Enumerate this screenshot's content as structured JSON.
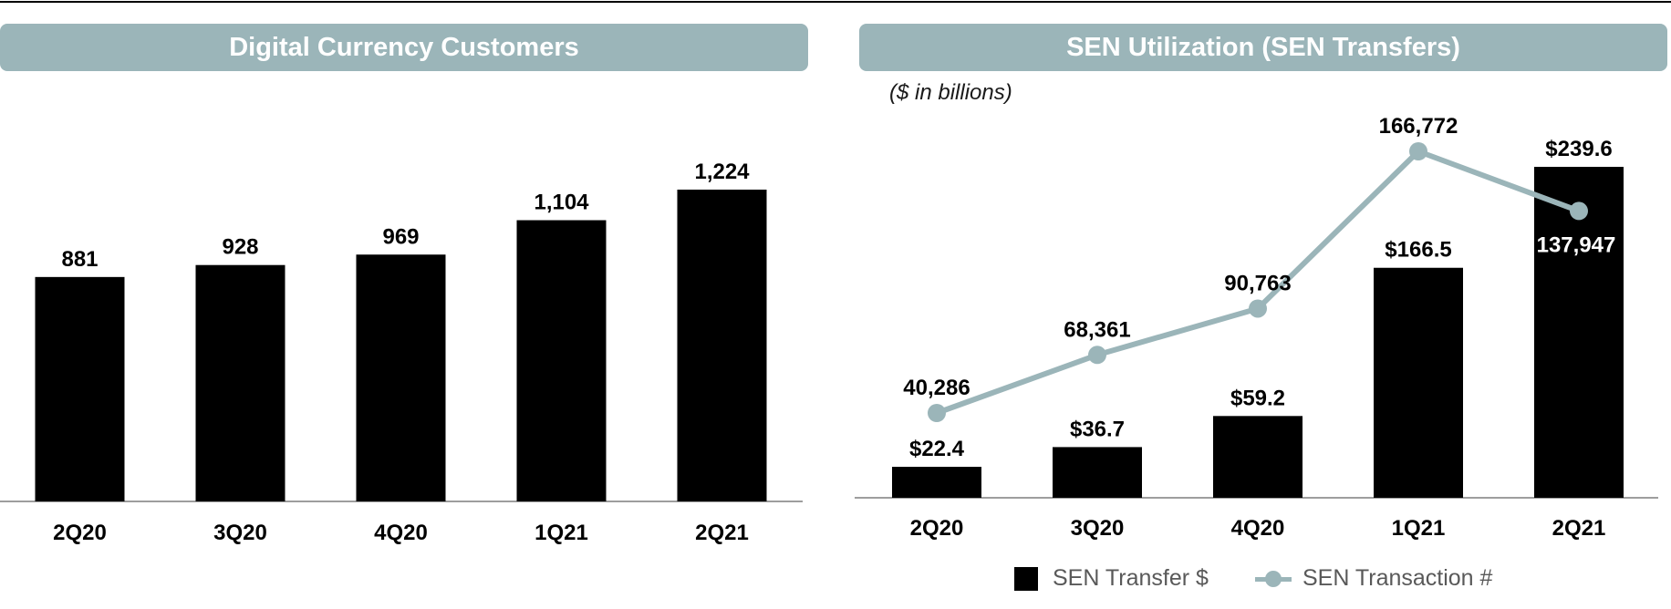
{
  "colors": {
    "bar": "#000000",
    "accent": "#9bb5b9",
    "axis": "#7f7f7f"
  },
  "left_panel": {
    "title": "Digital Currency Customers"
  },
  "right_panel": {
    "title": "SEN Utilization (SEN Transfers)",
    "subtitle": "($ in billions)"
  },
  "legend": {
    "bar_label": "SEN Transfer $",
    "line_label": "SEN Transaction #"
  },
  "chart_data": [
    {
      "type": "bar",
      "title": "Digital Currency Customers",
      "categories": [
        "2Q20",
        "3Q20",
        "4Q20",
        "1Q21",
        "2Q21"
      ],
      "values": [
        881,
        928,
        969,
        1104,
        1224
      ],
      "value_labels": [
        "881",
        "928",
        "969",
        "1,104",
        "1,224"
      ],
      "ylim": [
        0,
        1224
      ],
      "grid": false
    },
    {
      "type": "bar",
      "title": "SEN Utilization (SEN Transfers)",
      "subtitle": "($ in billions)",
      "categories": [
        "2Q20",
        "3Q20",
        "4Q20",
        "1Q21",
        "2Q21"
      ],
      "series": [
        {
          "name": "SEN Transfer $",
          "type": "bar",
          "values": [
            22.4,
            36.7,
            59.2,
            166.5,
            239.6
          ],
          "value_labels": [
            "$22.4",
            "$36.7",
            "$59.2",
            "$166.5",
            "$239.6"
          ]
        },
        {
          "name": "SEN Transaction #",
          "type": "line",
          "values": [
            40286,
            68361,
            90763,
            166772,
            137947
          ],
          "value_labels": [
            "40,286",
            "68,361",
            "90,763",
            "166,772",
            "137,947"
          ]
        }
      ],
      "legend": "bottom",
      "grid": false
    }
  ]
}
